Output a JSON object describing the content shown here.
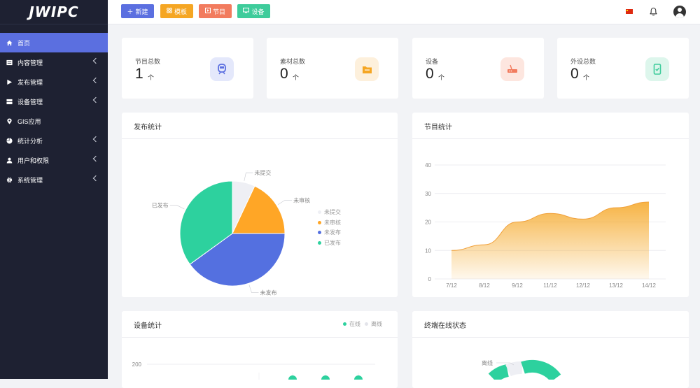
{
  "app": {
    "logo": "JWIPC"
  },
  "sidebar": {
    "items": [
      {
        "label": "首页",
        "icon": "home-icon",
        "active": true,
        "has_children": false
      },
      {
        "label": "内容管理",
        "icon": "content-icon",
        "active": false,
        "has_children": true
      },
      {
        "label": "发布管理",
        "icon": "play-icon",
        "active": false,
        "has_children": true
      },
      {
        "label": "设备管理",
        "icon": "device-icon",
        "active": false,
        "has_children": true
      },
      {
        "label": "GIS应用",
        "icon": "location-pin-icon",
        "active": false,
        "has_children": false
      },
      {
        "label": "统计分析",
        "icon": "pie-chart-icon",
        "active": false,
        "has_children": true
      },
      {
        "label": "用户和权限",
        "icon": "user-icon",
        "active": false,
        "has_children": true
      },
      {
        "label": "系统管理",
        "icon": "gear-icon",
        "active": false,
        "has_children": true
      }
    ]
  },
  "toolbar": {
    "new_label": "新建",
    "template_label": "模板",
    "program_label": "节目",
    "device_label": "设备",
    "colors": {
      "new": "#5b6fe0",
      "template": "#f5a623",
      "program": "#f27b5e",
      "device": "#3ecc9b"
    }
  },
  "stats": [
    {
      "label": "节目总数",
      "value": "1",
      "unit": "个",
      "icon": "program-icon",
      "color": "#5b6fe0",
      "bg": "#e4e8fb"
    },
    {
      "label": "素材总数",
      "value": "0",
      "unit": "个",
      "icon": "folder-icon",
      "color": "#f5a623",
      "bg": "#fdf0dc"
    },
    {
      "label": "设备",
      "value": "0",
      "unit": "个",
      "icon": "router-icon",
      "color": "#f27b5e",
      "bg": "#fde6df"
    },
    {
      "label": "外设总数",
      "value": "0",
      "unit": "个",
      "icon": "phone-check-icon",
      "color": "#3ecc9b",
      "bg": "#ddf6ec"
    }
  ],
  "release_panel": {
    "title": "发布统计",
    "legend": [
      "未提交",
      "未审核",
      "未发布",
      "已发布"
    ]
  },
  "program_panel": {
    "title": "节目统计"
  },
  "device_panel": {
    "title": "设备统计",
    "legend": [
      {
        "label": "在线",
        "color": "#2dd19e"
      },
      {
        "label": "离线",
        "color": "#eeeff4"
      }
    ]
  },
  "terminal_panel": {
    "title": "终端在线状态",
    "label": "离线"
  },
  "chart_data": [
    {
      "type": "pie",
      "title": "发布统计",
      "categories": [
        "未提交",
        "未审核",
        "未发布",
        "已发布"
      ],
      "values": [
        7,
        18,
        40,
        35
      ],
      "colors": [
        "#eeeff4",
        "#ffa626",
        "#5470e0",
        "#2dd19e"
      ]
    },
    {
      "type": "area",
      "title": "节目统计",
      "categories": [
        "7/12",
        "8/12",
        "9/12",
        "11/12",
        "12/12",
        "13/12",
        "14/12"
      ],
      "series": [
        {
          "values": [
            10,
            12,
            20,
            23,
            21,
            25,
            27
          ]
        }
      ],
      "ylim": [
        0,
        40
      ],
      "yticks": [
        0,
        10,
        20,
        30,
        40
      ],
      "color": "#f5a623",
      "grid": true
    },
    {
      "type": "line",
      "title": "设备统计",
      "yticks": [
        200
      ],
      "ylim": [
        0,
        200
      ]
    }
  ]
}
